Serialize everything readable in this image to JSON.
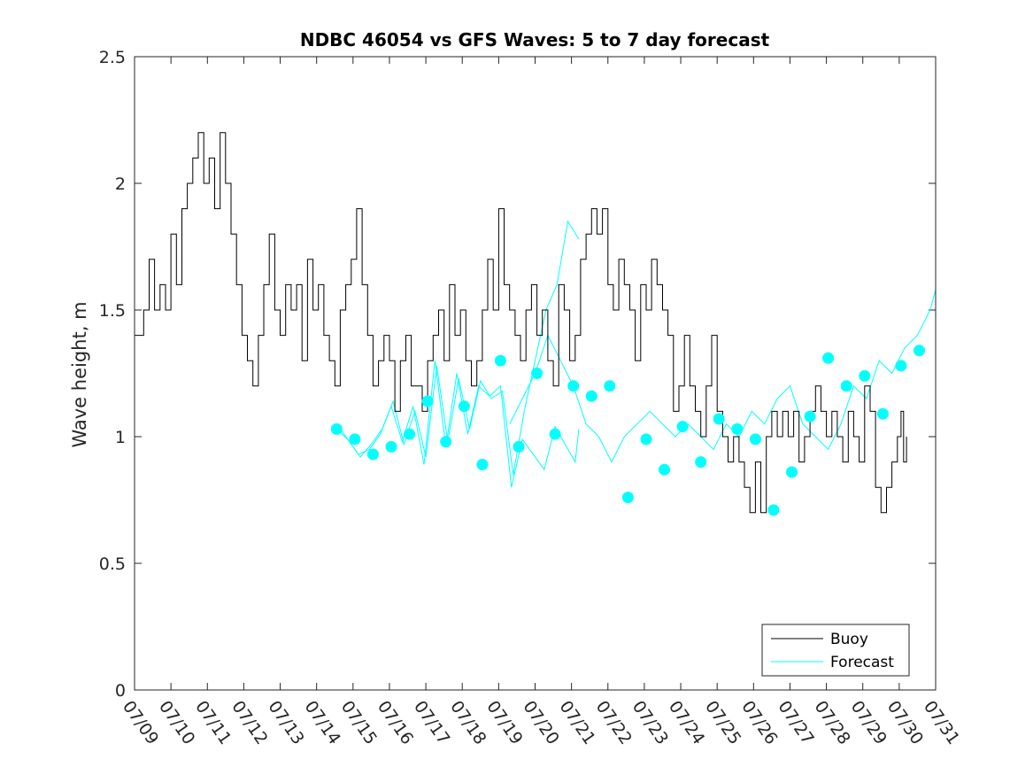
{
  "chart_data": {
    "type": "line",
    "title": "NDBC 46054 vs GFS Waves: 5 to 7 day forecast",
    "ylabel": "Wave height, m",
    "xlabel": "",
    "ylim": [
      0,
      2.5
    ],
    "yticks": [
      "0",
      "0.5",
      "1",
      "1.5",
      "2",
      "2.5"
    ],
    "xlim": [
      0,
      22
    ],
    "xticks": [
      "07/09",
      "07/10",
      "07/11",
      "07/12",
      "07/13",
      "07/14",
      "07/15",
      "07/16",
      "07/17",
      "07/18",
      "07/19",
      "07/20",
      "07/21",
      "07/22",
      "07/23",
      "07/24",
      "07/25",
      "07/26",
      "07/27",
      "07/28",
      "07/29",
      "07/30",
      "07/31"
    ],
    "grid": false,
    "legend_position": "bottom-right",
    "legend": [
      "Buoy",
      "Forecast"
    ],
    "colors": {
      "buoy": "#000000",
      "forecast": "#00ffff"
    },
    "buoy": {
      "x": [
        0.0,
        0.25,
        0.4,
        0.55,
        0.7,
        0.85,
        1.0,
        1.15,
        1.3,
        1.45,
        1.6,
        1.75,
        1.9,
        2.05,
        2.2,
        2.35,
        2.5,
        2.65,
        2.8,
        2.95,
        3.1,
        3.25,
        3.4,
        3.55,
        3.7,
        3.85,
        4.0,
        4.15,
        4.3,
        4.45,
        4.6,
        4.75,
        4.9,
        5.05,
        5.2,
        5.35,
        5.5,
        5.65,
        5.8,
        5.95,
        6.1,
        6.25,
        6.4,
        6.55,
        6.7,
        6.85,
        7.0,
        7.15,
        7.3,
        7.45,
        7.6,
        7.75,
        7.9,
        8.05,
        8.2,
        8.35,
        8.5,
        8.65,
        8.8,
        8.95,
        9.1,
        9.25,
        9.4,
        9.55,
        9.7,
        9.85,
        10.0,
        10.15,
        10.3,
        10.45,
        10.6,
        10.75,
        10.9,
        11.05,
        11.2,
        11.35,
        11.5,
        11.65,
        11.8,
        11.95,
        12.1,
        12.25,
        12.4,
        12.55,
        12.7,
        12.85,
        13.0,
        13.15,
        13.3,
        13.45,
        13.6,
        13.75,
        13.9,
        14.05,
        14.2,
        14.35,
        14.5,
        14.65,
        14.8,
        14.95,
        15.1,
        15.25,
        15.4,
        15.55,
        15.7,
        15.85,
        16.0,
        16.15,
        16.3,
        16.45,
        16.6,
        16.75,
        16.9,
        17.05,
        17.2,
        17.35,
        17.5,
        17.65,
        17.8,
        17.95,
        18.1,
        18.25,
        18.4,
        18.55,
        18.7,
        18.85,
        19.0,
        19.15,
        19.3,
        19.45,
        19.6,
        19.75,
        19.9,
        20.05,
        20.2,
        20.35,
        20.5,
        20.65,
        20.8,
        20.95,
        21.05,
        21.12,
        21.2
      ],
      "y": [
        1.4,
        1.5,
        1.7,
        1.5,
        1.6,
        1.5,
        1.8,
        1.6,
        1.9,
        2.0,
        2.1,
        2.2,
        2.0,
        2.1,
        1.9,
        2.2,
        2.0,
        1.8,
        1.6,
        1.4,
        1.3,
        1.2,
        1.4,
        1.6,
        1.8,
        1.5,
        1.4,
        1.6,
        1.5,
        1.6,
        1.3,
        1.7,
        1.5,
        1.6,
        1.4,
        1.3,
        1.2,
        1.5,
        1.6,
        1.7,
        1.9,
        1.6,
        1.4,
        1.2,
        1.3,
        1.4,
        1.3,
        1.1,
        1.3,
        1.4,
        1.2,
        1.2,
        1.1,
        1.3,
        1.4,
        1.5,
        1.3,
        1.6,
        1.4,
        1.5,
        1.3,
        1.2,
        1.3,
        1.5,
        1.7,
        1.5,
        1.9,
        1.6,
        1.5,
        1.4,
        1.3,
        1.5,
        1.6,
        1.4,
        1.5,
        1.3,
        1.2,
        1.6,
        1.5,
        1.3,
        1.4,
        1.7,
        1.8,
        1.9,
        1.8,
        1.9,
        1.6,
        1.5,
        1.7,
        1.6,
        1.5,
        1.3,
        1.6,
        1.5,
        1.7,
        1.6,
        1.5,
        1.4,
        1.1,
        1.2,
        1.4,
        1.2,
        1.1,
        1.0,
        1.2,
        1.4,
        1.1,
        1.0,
        0.9,
        1.0,
        0.9,
        0.8,
        0.7,
        0.9,
        0.7,
        1.0,
        1.1,
        1.0,
        1.1,
        1.0,
        1.1,
        0.9,
        1.0,
        1.1,
        1.2,
        1.1,
        1.0,
        1.1,
        1.0,
        0.9,
        1.1,
        1.0,
        0.9,
        1.2,
        1.1,
        0.8,
        0.7,
        0.8,
        0.9,
        1.0,
        1.1,
        0.9,
        1.0
      ]
    },
    "forecast_runs": [
      {
        "x": [
          5.55,
          5.85,
          6.15,
          6.45,
          6.75,
          7.05,
          7.35,
          7.65,
          7.95,
          8.25,
          8.55,
          8.85,
          9.15,
          9.45,
          9.75,
          10.05,
          10.35,
          10.65,
          11.25,
          11.55,
          12.1,
          12.2
        ],
        "y": [
          1.03,
          0.99,
          0.93,
          0.95,
          1.01,
          1.12,
          0.98,
          1.12,
          0.89,
          1.3,
          0.96,
          1.25,
          1.01,
          1.2,
          1.16,
          1.2,
          0.8,
          0.99,
          0.87,
          1.04,
          0.9,
          1.03
        ]
      },
      {
        "x": [
          5.55,
          5.9,
          6.2,
          6.5,
          6.8,
          7.1,
          7.4,
          7.7,
          8.0,
          8.3,
          8.6,
          8.9,
          9.2,
          9.5,
          9.8,
          10.1,
          10.4,
          10.7,
          11.0,
          11.3,
          11.6,
          11.9,
          12.2
        ],
        "y": [
          1.05,
          0.98,
          0.92,
          0.97,
          1.03,
          1.14,
          0.97,
          1.1,
          0.92,
          1.28,
          0.98,
          1.23,
          1.03,
          1.22,
          1.15,
          1.18,
          0.85,
          1.1,
          1.3,
          1.5,
          1.6,
          1.85,
          1.78
        ]
      },
      {
        "x": [
          10.3,
          10.65,
          11.0,
          11.35,
          11.7,
          12.05,
          12.4,
          12.75,
          13.1,
          13.45,
          13.8,
          14.15,
          14.5,
          14.85,
          15.2,
          15.55,
          15.9,
          16.25,
          16.6,
          16.95,
          17.3,
          17.65,
          18.0,
          18.35,
          18.7,
          19.05,
          19.4,
          19.75,
          20.1,
          20.45,
          20.8,
          21.15,
          21.5,
          21.85,
          22.0
        ],
        "y": [
          1.05,
          1.15,
          1.25,
          1.4,
          1.3,
          1.2,
          1.05,
          1.0,
          0.9,
          1.0,
          1.05,
          1.1,
          1.05,
          1.0,
          1.05,
          1.0,
          0.95,
          1.05,
          1.0,
          1.1,
          1.05,
          1.15,
          1.2,
          1.05,
          1.0,
          0.95,
          1.05,
          1.2,
          1.15,
          1.3,
          1.25,
          1.35,
          1.4,
          1.5,
          1.58
        ]
      }
    ],
    "forecast_markers": {
      "x": [
        5.55,
        6.05,
        6.55,
        7.05,
        7.55,
        8.05,
        8.55,
        9.05,
        9.55,
        10.05,
        10.55,
        11.05,
        11.55,
        12.05,
        12.55,
        13.05,
        13.55,
        14.05,
        14.55,
        15.05,
        15.55,
        16.05,
        16.55,
        17.05,
        17.55,
        18.05,
        18.55,
        19.05,
        19.55,
        20.05,
        20.55,
        21.05,
        21.55
      ],
      "y": [
        1.03,
        0.99,
        0.93,
        0.96,
        1.01,
        1.14,
        0.98,
        1.12,
        0.89,
        1.3,
        0.96,
        1.25,
        1.01,
        1.2,
        1.16,
        1.2,
        0.76,
        0.99,
        0.87,
        1.04,
        0.9,
        1.07,
        1.03,
        0.99,
        0.71,
        0.86,
        1.08,
        1.31,
        1.2,
        1.24,
        1.09,
        1.28,
        1.34
      ]
    }
  }
}
